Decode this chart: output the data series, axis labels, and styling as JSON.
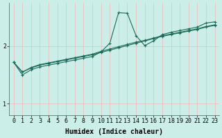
{
  "bg_color": "#cceee8",
  "line_color": "#1a6b5a",
  "grid_color": "#f0b8b8",
  "xlabel": "Humidex (Indice chaleur)",
  "xlabel_fontsize": 7,
  "tick_fontsize": 6,
  "yticks": [
    1,
    2
  ],
  "xticks": [
    0,
    1,
    2,
    3,
    4,
    5,
    6,
    7,
    8,
    9,
    10,
    11,
    12,
    13,
    14,
    15,
    16,
    17,
    18,
    19,
    20,
    21,
    22,
    23
  ],
  "xlim": [
    -0.5,
    23.5
  ],
  "ylim": [
    0.8,
    2.75
  ],
  "line1_x": [
    0,
    1,
    2,
    3,
    4,
    5,
    6,
    7,
    8,
    9,
    10,
    11,
    12,
    13,
    14,
    15,
    16,
    17,
    18,
    19,
    20,
    21,
    22,
    23
  ],
  "line1_y": [
    1.72,
    1.55,
    1.62,
    1.67,
    1.7,
    1.73,
    1.76,
    1.79,
    1.82,
    1.85,
    1.89,
    1.93,
    1.97,
    2.01,
    2.05,
    2.09,
    2.13,
    2.17,
    2.2,
    2.23,
    2.26,
    2.29,
    2.33,
    2.36
  ],
  "line2_x": [
    0,
    1,
    2,
    3,
    4,
    5,
    6,
    7,
    8,
    9,
    10,
    11,
    12,
    13,
    14,
    15,
    16,
    17,
    18,
    19,
    20,
    21,
    22,
    23
  ],
  "line2_y": [
    1.72,
    1.55,
    1.63,
    1.68,
    1.71,
    1.74,
    1.77,
    1.8,
    1.83,
    1.86,
    1.91,
    1.95,
    1.99,
    2.03,
    2.07,
    2.1,
    2.14,
    2.18,
    2.21,
    2.24,
    2.27,
    2.3,
    2.34,
    2.37
  ],
  "line3_x": [
    0,
    1,
    2,
    3,
    4,
    5,
    6,
    7,
    8,
    9,
    10,
    11,
    12,
    13,
    14,
    15,
    16,
    17,
    18,
    19,
    20,
    21,
    22,
    23
  ],
  "line3_y": [
    1.72,
    1.5,
    1.59,
    1.64,
    1.67,
    1.7,
    1.73,
    1.76,
    1.79,
    1.82,
    1.9,
    2.05,
    2.58,
    2.57,
    2.18,
    2.01,
    2.09,
    2.2,
    2.24,
    2.27,
    2.3,
    2.33,
    2.4,
    2.42
  ]
}
